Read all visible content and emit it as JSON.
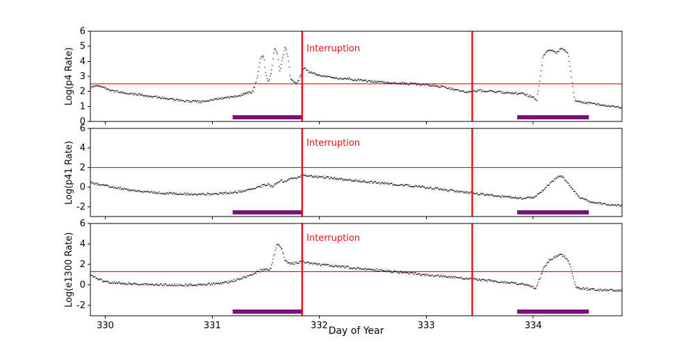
{
  "figure": {
    "xlabel": "Day of Year",
    "xlim": [
      329.86,
      334.83
    ],
    "x_ticks": [
      330,
      331,
      332,
      333,
      334
    ],
    "interruption_label": "Interruption",
    "interruption_x": [
      331.84,
      333.43
    ],
    "coverage_bars": [
      [
        331.19,
        331.84
      ],
      [
        333.85,
        334.52
      ]
    ],
    "colors": {
      "series": "#111111",
      "threshold": "#ff0000",
      "interruption": "#ee1010",
      "coverage_bar": "#7b0f7b",
      "axis": "#000000"
    }
  },
  "chart_data": [
    {
      "type": "scatter",
      "ylabel": "Log(p4 Rate)",
      "ylim": [
        0,
        6
      ],
      "yticks": [
        0,
        1,
        2,
        3,
        4,
        5,
        6
      ],
      "threshold": 2.5,
      "points": [
        [
          329.86,
          2.25
        ],
        [
          329.92,
          2.4
        ],
        [
          329.98,
          2.3
        ],
        [
          330.05,
          2.05
        ],
        [
          330.15,
          1.95
        ],
        [
          330.3,
          1.8
        ],
        [
          330.45,
          1.65
        ],
        [
          330.6,
          1.5
        ],
        [
          330.75,
          1.35
        ],
        [
          330.9,
          1.3
        ],
        [
          331.0,
          1.45
        ],
        [
          331.1,
          1.55
        ],
        [
          331.2,
          1.65
        ],
        [
          331.3,
          1.8
        ],
        [
          331.38,
          2.0
        ],
        [
          331.42,
          2.9
        ],
        [
          331.45,
          4.2
        ],
        [
          331.48,
          4.35
        ],
        [
          331.5,
          3.2
        ],
        [
          331.53,
          2.6
        ],
        [
          331.56,
          3.6
        ],
        [
          331.58,
          4.9
        ],
        [
          331.61,
          4.5
        ],
        [
          331.63,
          3.3
        ],
        [
          331.66,
          4.3
        ],
        [
          331.68,
          5.0
        ],
        [
          331.71,
          4.3
        ],
        [
          331.73,
          2.9
        ],
        [
          331.77,
          2.55
        ],
        [
          331.8,
          2.6
        ],
        [
          331.86,
          3.6
        ],
        [
          331.9,
          3.3
        ],
        [
          332.0,
          3.05
        ],
        [
          332.15,
          2.9
        ],
        [
          332.3,
          2.8
        ],
        [
          332.5,
          2.65
        ],
        [
          332.7,
          2.55
        ],
        [
          332.9,
          2.5
        ],
        [
          333.05,
          2.4
        ],
        [
          333.2,
          2.25
        ],
        [
          333.3,
          2.05
        ],
        [
          333.38,
          1.95
        ],
        [
          333.5,
          2.05
        ],
        [
          333.62,
          2.0
        ],
        [
          333.75,
          1.9
        ],
        [
          333.9,
          1.85
        ],
        [
          334.0,
          1.6
        ],
        [
          334.03,
          1.35
        ],
        [
          334.06,
          2.6
        ],
        [
          334.09,
          4.3
        ],
        [
          334.13,
          4.7
        ],
        [
          334.18,
          4.75
        ],
        [
          334.22,
          4.55
        ],
        [
          334.26,
          4.85
        ],
        [
          334.3,
          4.75
        ],
        [
          334.33,
          4.4
        ],
        [
          334.36,
          2.8
        ],
        [
          334.39,
          1.4
        ],
        [
          334.44,
          1.3
        ],
        [
          334.55,
          1.2
        ],
        [
          334.7,
          1.05
        ],
        [
          334.83,
          0.95
        ]
      ]
    },
    {
      "type": "scatter",
      "ylabel": "Log(p41 Rate)",
      "ylim": [
        -3,
        6
      ],
      "yticks": [
        -2,
        0,
        2,
        4,
        6
      ],
      "threshold": 2.0,
      "points": [
        [
          329.86,
          0.45
        ],
        [
          329.95,
          0.25
        ],
        [
          330.05,
          0.05
        ],
        [
          330.15,
          -0.15
        ],
        [
          330.3,
          -0.4
        ],
        [
          330.45,
          -0.55
        ],
        [
          330.6,
          -0.65
        ],
        [
          330.8,
          -0.72
        ],
        [
          331.0,
          -0.7
        ],
        [
          331.15,
          -0.6
        ],
        [
          331.3,
          -0.4
        ],
        [
          331.4,
          -0.15
        ],
        [
          331.47,
          0.15
        ],
        [
          331.52,
          0.3
        ],
        [
          331.56,
          0.05
        ],
        [
          331.6,
          0.45
        ],
        [
          331.64,
          0.7
        ],
        [
          331.68,
          0.55
        ],
        [
          331.73,
          0.85
        ],
        [
          331.8,
          1.0
        ],
        [
          331.86,
          1.2
        ],
        [
          331.95,
          1.1
        ],
        [
          332.1,
          0.95
        ],
        [
          332.3,
          0.7
        ],
        [
          332.5,
          0.5
        ],
        [
          332.7,
          0.3
        ],
        [
          332.9,
          0.1
        ],
        [
          333.1,
          -0.15
        ],
        [
          333.3,
          -0.45
        ],
        [
          333.5,
          -0.7
        ],
        [
          333.7,
          -0.95
        ],
        [
          333.9,
          -1.15
        ],
        [
          334.0,
          -1.05
        ],
        [
          334.06,
          -0.6
        ],
        [
          334.12,
          0.0
        ],
        [
          334.18,
          0.6
        ],
        [
          334.23,
          1.05
        ],
        [
          334.27,
          1.1
        ],
        [
          334.32,
          0.5
        ],
        [
          334.37,
          -0.3
        ],
        [
          334.43,
          -1.0
        ],
        [
          334.52,
          -1.45
        ],
        [
          334.65,
          -1.7
        ],
        [
          334.83,
          -1.9
        ]
      ]
    },
    {
      "type": "scatter",
      "ylabel": "Log(e1300 Rate)",
      "ylim": [
        -3,
        6
      ],
      "yticks": [
        -2,
        0,
        2,
        4,
        6
      ],
      "threshold": 1.3,
      "points": [
        [
          329.86,
          0.9
        ],
        [
          329.92,
          0.7
        ],
        [
          329.98,
          0.4
        ],
        [
          330.05,
          0.25
        ],
        [
          330.2,
          0.15
        ],
        [
          330.4,
          0.05
        ],
        [
          330.6,
          0.0
        ],
        [
          330.8,
          0.0
        ],
        [
          331.0,
          0.1
        ],
        [
          331.15,
          0.3
        ],
        [
          331.25,
          0.55
        ],
        [
          331.35,
          0.95
        ],
        [
          331.45,
          1.4
        ],
        [
          331.5,
          1.55
        ],
        [
          331.54,
          1.45
        ],
        [
          331.57,
          2.6
        ],
        [
          331.6,
          3.8
        ],
        [
          331.62,
          3.95
        ],
        [
          331.65,
          3.5
        ],
        [
          331.68,
          2.4
        ],
        [
          331.72,
          2.1
        ],
        [
          331.78,
          2.15
        ],
        [
          331.84,
          2.3
        ],
        [
          331.92,
          2.1
        ],
        [
          332.05,
          1.95
        ],
        [
          332.2,
          1.8
        ],
        [
          332.4,
          1.6
        ],
        [
          332.6,
          1.4
        ],
        [
          332.8,
          1.2
        ],
        [
          333.0,
          1.0
        ],
        [
          333.2,
          0.8
        ],
        [
          333.4,
          0.6
        ],
        [
          333.6,
          0.4
        ],
        [
          333.8,
          0.2
        ],
        [
          333.95,
          0.0
        ],
        [
          334.02,
          -0.35
        ],
        [
          334.06,
          0.6
        ],
        [
          334.1,
          1.7
        ],
        [
          334.15,
          2.4
        ],
        [
          334.2,
          2.7
        ],
        [
          334.25,
          2.95
        ],
        [
          334.29,
          2.8
        ],
        [
          334.33,
          2.4
        ],
        [
          334.36,
          1.3
        ],
        [
          334.4,
          -0.25
        ],
        [
          334.5,
          -0.4
        ],
        [
          334.65,
          -0.5
        ],
        [
          334.83,
          -0.55
        ]
      ]
    }
  ]
}
